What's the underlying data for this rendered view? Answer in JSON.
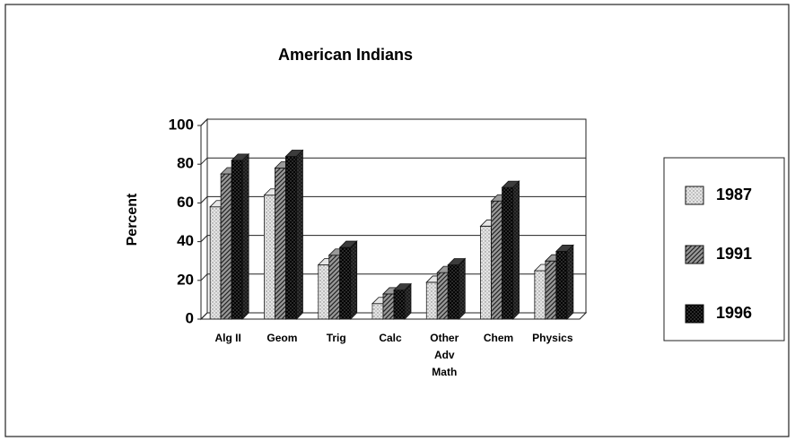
{
  "chart_data": {
    "type": "bar",
    "title": "American Indians",
    "y_label": "Percent",
    "categories": [
      "Alg II",
      "Geom",
      "Trig",
      "Calc",
      "Other Adv Math",
      "Chem",
      "Physics"
    ],
    "series": [
      {
        "name": "1987",
        "color": "#e6e6e6",
        "values": [
          58,
          64,
          28,
          8,
          19,
          48,
          25
        ]
      },
      {
        "name": "1991",
        "color": "#9a9a9a",
        "values": [
          75,
          78,
          33,
          13,
          24,
          61,
          30
        ]
      },
      {
        "name": "1996",
        "color": "#3c3c3c",
        "values": [
          82,
          84,
          37,
          15,
          28,
          68,
          35
        ]
      }
    ],
    "ylim": [
      0,
      100
    ],
    "yticks": [
      0,
      20,
      40,
      60,
      80,
      100
    ],
    "grid": true,
    "legend": "right"
  }
}
